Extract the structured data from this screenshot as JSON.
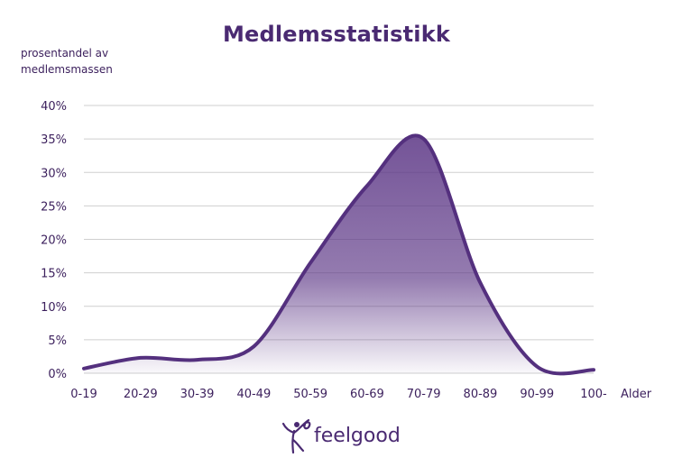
{
  "chart_data": {
    "type": "area",
    "title": "Medlemsstatistikk",
    "ylabel_lines": [
      "prosentandel av",
      "medlemsmassen"
    ],
    "xlabel": "Alder",
    "categories": [
      "0-19",
      "20-29",
      "30-39",
      "40-49",
      "50-59",
      "60-69",
      "70-79",
      "80-89",
      "90-99",
      "100-"
    ],
    "yticks": [
      "0%",
      "5%",
      "10%",
      "15%",
      "20%",
      "25%",
      "30%",
      "35%",
      "40%"
    ],
    "ylim": [
      0,
      40
    ],
    "grid": true,
    "series": [
      {
        "values": [
          0.7,
          2.3,
          2.0,
          4.0,
          16.5,
          28.0,
          35.0,
          13.5,
          1.0,
          0.5
        ]
      }
    ],
    "colors": {
      "line": "#54307e",
      "fill": "#5b3585",
      "text": "#3b1f5c",
      "grid": "#cfcfcf"
    }
  },
  "brand": {
    "name": "Feelgood"
  }
}
